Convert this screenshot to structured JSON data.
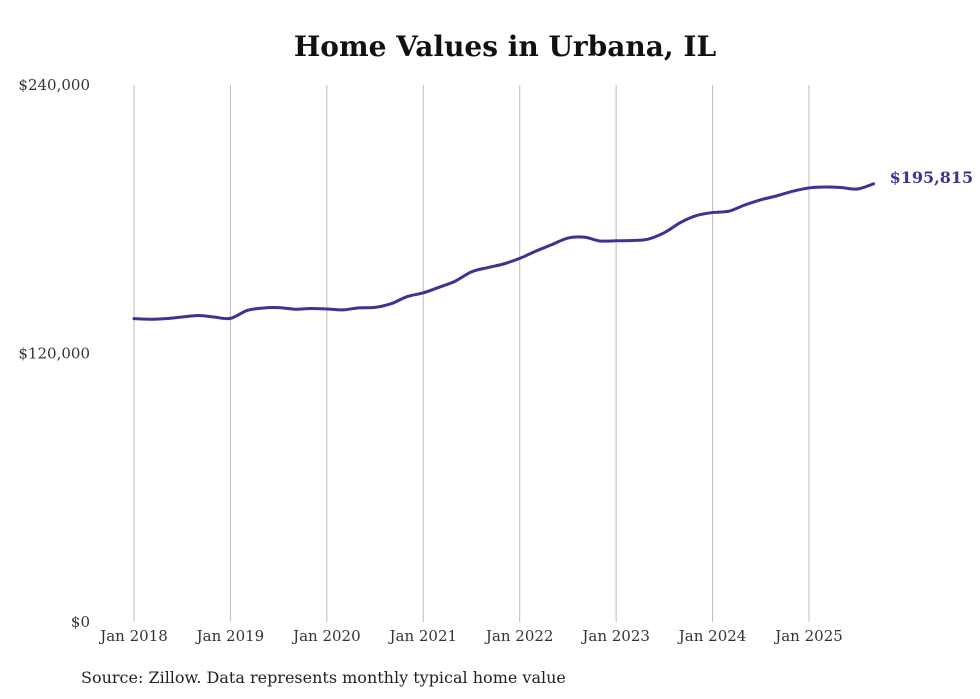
{
  "chart_data": {
    "type": "line",
    "title": "Home Values in Urbana, IL",
    "xlabel": "",
    "ylabel": "",
    "ylim": [
      0,
      240000
    ],
    "y_ticks": [
      0,
      120000,
      240000
    ],
    "y_tick_labels": [
      "$0",
      "$120,000",
      "$240,000"
    ],
    "x_ticks": [
      2018,
      2019,
      2020,
      2021,
      2022,
      2023,
      2024,
      2025
    ],
    "x_tick_labels": [
      "Jan 2018",
      "Jan 2019",
      "Jan 2020",
      "Jan 2021",
      "Jan 2022",
      "Jan 2023",
      "Jan 2024",
      "Jan 2025"
    ],
    "xlim": [
      2018,
      2025.67
    ],
    "grid": "vertical",
    "series": [
      {
        "name": "Typical home value",
        "color": "#3b3494",
        "x": [
          2018.0,
          2018.17,
          2018.33,
          2018.5,
          2018.67,
          2018.83,
          2019.0,
          2019.17,
          2019.33,
          2019.5,
          2019.67,
          2019.83,
          2020.0,
          2020.17,
          2020.33,
          2020.5,
          2020.67,
          2020.83,
          2021.0,
          2021.17,
          2021.33,
          2021.5,
          2021.67,
          2021.83,
          2022.0,
          2022.17,
          2022.33,
          2022.5,
          2022.67,
          2022.83,
          2023.0,
          2023.17,
          2023.33,
          2023.5,
          2023.67,
          2023.83,
          2024.0,
          2024.17,
          2024.33,
          2024.5,
          2024.67,
          2024.83,
          2025.0,
          2025.17,
          2025.33,
          2025.5,
          2025.67
        ],
        "values": [
          135600,
          135300,
          135600,
          136300,
          137000,
          136300,
          135700,
          139200,
          140300,
          140500,
          139800,
          140100,
          139900,
          139500,
          140400,
          140600,
          142300,
          145400,
          147100,
          149700,
          152300,
          156500,
          158400,
          160000,
          162500,
          165800,
          168600,
          171600,
          172000,
          170300,
          170400,
          170500,
          171100,
          174000,
          178600,
          181600,
          183000,
          183600,
          186300,
          188700,
          190500,
          192500,
          194000,
          194400,
          194200,
          193500,
          195815
        ]
      }
    ],
    "end_label": "$195,815"
  },
  "source_note": "Source: Zillow. Data represents monthly typical home value"
}
